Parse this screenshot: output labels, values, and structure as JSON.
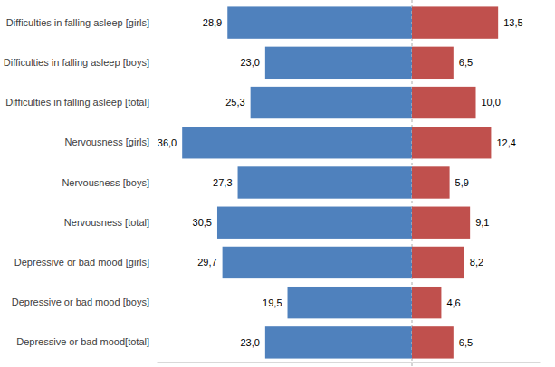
{
  "chart_data": [
    {
      "type": "bar",
      "orientation": "horizontal",
      "categories": [
        "Difficulties in falling asleep [girls]",
        "Difficulties in falling asleep [boys]",
        "Difficulties in falling asleep [total]",
        "Nervousness [girls]",
        "Nervousness [boys]",
        "Nervousness [total]",
        "Depressive or bad mood [girls]",
        "Depressive or bad mood [boys]",
        "Depressive or bad mood[total]"
      ],
      "values": [
        28.9,
        23.0,
        25.3,
        36.0,
        27.3,
        30.5,
        29.7,
        19.5,
        23.0
      ],
      "value_labels": [
        "28,9",
        "23,0",
        "25,3",
        "36,0",
        "27,3",
        "30,5",
        "29,7",
        "19,5",
        "23,0"
      ],
      "color": "#4f81bd",
      "xlim": [
        40,
        0
      ],
      "data_labels": true,
      "tick_labels": "y"
    },
    {
      "type": "bar",
      "orientation": "horizontal",
      "categories": [
        null,
        null,
        null,
        null,
        null,
        null,
        null,
        null,
        null
      ],
      "values": [
        13.5,
        6.5,
        10.0,
        12.4,
        5.9,
        9.1,
        8.2,
        4.6,
        6.5
      ],
      "value_labels": [
        "13,5",
        "6,5",
        "10,0",
        "12,4",
        "5,9",
        "9,1",
        "8,2",
        "4,6",
        "6,5"
      ],
      "color": "#c0504d",
      "xlim": [
        0,
        20
      ],
      "data_labels": true,
      "tick_labels": false
    }
  ]
}
